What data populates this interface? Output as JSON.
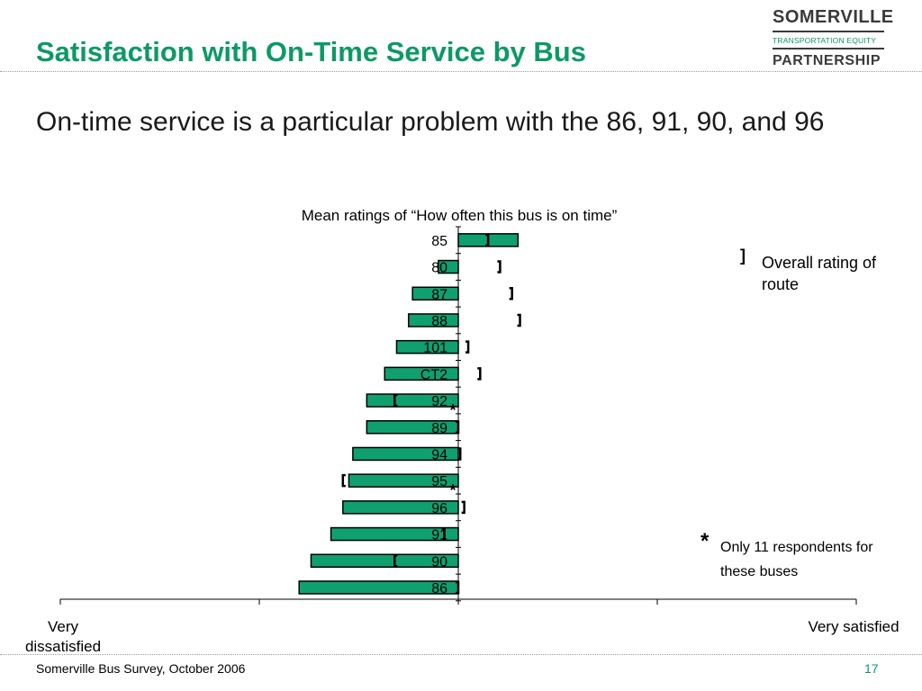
{
  "slide": {
    "title": "Satisfaction with On-Time Service by Bus",
    "subtitle": "On-time service is a particular problem with the 86, 91, 90, and 96",
    "footer": "Somerville Bus Survey, October 2006",
    "page_number": "17",
    "accent_color": "#0c9a63"
  },
  "logo": {
    "line1": "SOMERVILLE",
    "line2": "TRANSPORTATION EQUITY",
    "line3": "PARTNERSHIP"
  },
  "legend": {
    "overall_symbol": "]",
    "overall_label": "Overall rating of route",
    "asterisk_symbol": "*",
    "asterisk_label": "Only 11 respondents for these buses"
  },
  "chart_data": {
    "type": "bar",
    "orientation": "horizontal",
    "title": "Mean ratings of “How often this bus is on time”",
    "x_min_label": "Very dissatisfied",
    "x_max_label": "Very satisfied",
    "xlim": [
      -2,
      2
    ],
    "x_ticks": [
      -2,
      -1,
      0,
      1,
      2
    ],
    "bar_color": "#10a070",
    "categories": [
      "85",
      "80",
      "87",
      "88",
      "101",
      "CT2",
      "92",
      "89",
      "94",
      "95",
      "96",
      "91",
      "90",
      "86"
    ],
    "values": [
      0.3,
      -0.1,
      -0.23,
      -0.25,
      -0.31,
      -0.37,
      -0.46,
      -0.46,
      -0.53,
      -0.55,
      -0.58,
      -0.64,
      -0.74,
      -0.8
    ],
    "route_overall": [
      0.15,
      0.21,
      0.27,
      0.31,
      0.05,
      0.11,
      -0.32,
      0.0,
      0.01,
      -0.58,
      0.03,
      -0.07,
      -0.32,
      0.0
    ],
    "low_sample": [
      "92",
      "95"
    ]
  }
}
